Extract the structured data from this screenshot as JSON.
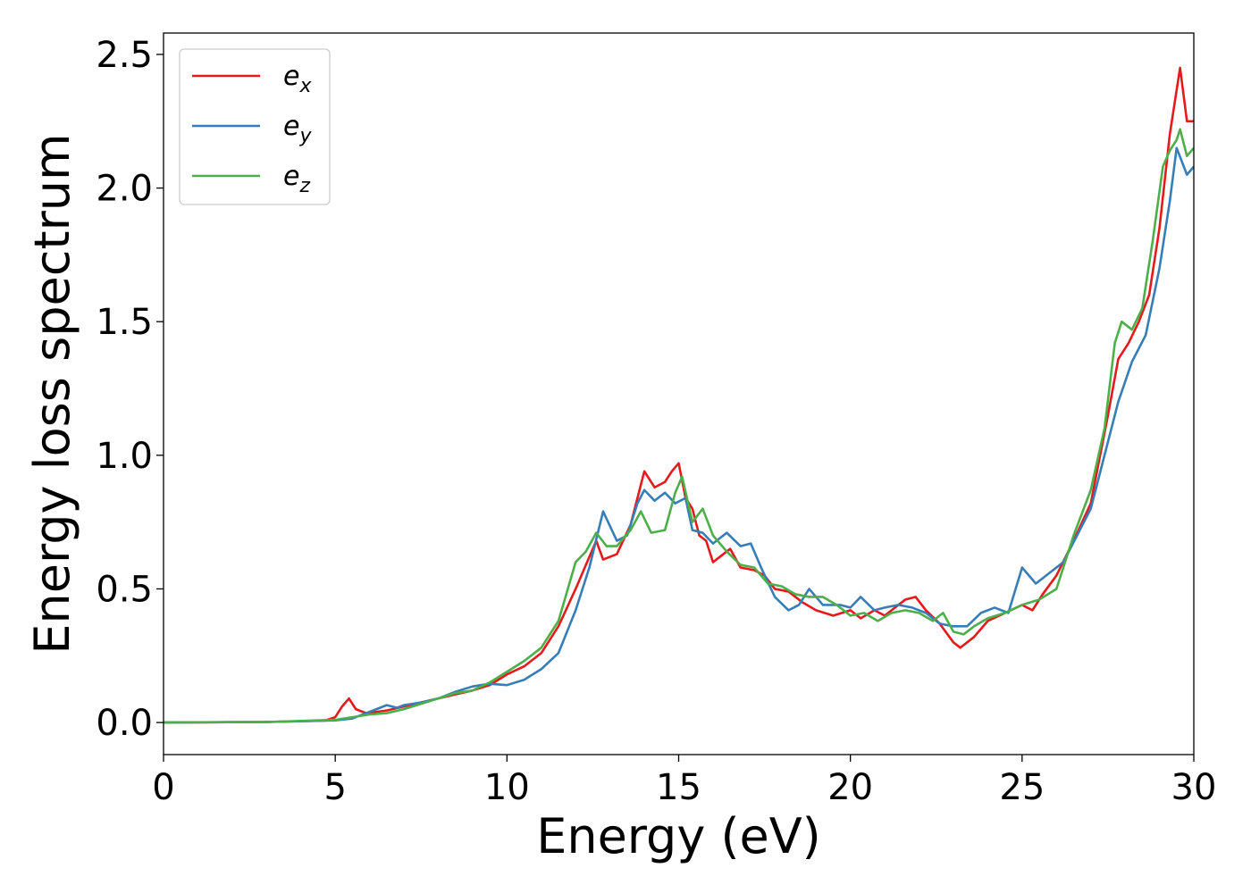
{
  "chart_data": {
    "type": "line",
    "title": "",
    "xlabel": "Energy (eV)",
    "ylabel": "Energy loss spectrum",
    "xlim": [
      0,
      30
    ],
    "ylim": [
      -0.12,
      2.58
    ],
    "xticks": [
      0,
      5,
      10,
      15,
      20,
      25,
      30
    ],
    "xtick_labels": [
      "0",
      "5",
      "10",
      "15",
      "20",
      "25",
      "30"
    ],
    "yticks": [
      0.0,
      0.5,
      1.0,
      1.5,
      2.0,
      2.5
    ],
    "ytick_labels": [
      "0.0",
      "0.5",
      "1.0",
      "1.5",
      "2.0",
      "2.5"
    ],
    "grid": false,
    "legend_position": "top-left",
    "series": [
      {
        "name": "e",
        "subscript": "x",
        "color": "#e41a1c",
        "points": [
          [
            0,
            0
          ],
          [
            3,
            0.002
          ],
          [
            4.7,
            0.007
          ],
          [
            5.0,
            0.02
          ],
          [
            5.2,
            0.06
          ],
          [
            5.4,
            0.09
          ],
          [
            5.6,
            0.05
          ],
          [
            5.9,
            0.035
          ],
          [
            6.5,
            0.045
          ],
          [
            7,
            0.06
          ],
          [
            7.5,
            0.075
          ],
          [
            8,
            0.09
          ],
          [
            8.5,
            0.105
          ],
          [
            9,
            0.12
          ],
          [
            9.5,
            0.14
          ],
          [
            10,
            0.18
          ],
          [
            10.5,
            0.21
          ],
          [
            11,
            0.26
          ],
          [
            11.5,
            0.36
          ],
          [
            12,
            0.5
          ],
          [
            12.3,
            0.59
          ],
          [
            12.6,
            0.68
          ],
          [
            12.8,
            0.61
          ],
          [
            13.2,
            0.63
          ],
          [
            13.6,
            0.74
          ],
          [
            14.0,
            0.94
          ],
          [
            14.3,
            0.88
          ],
          [
            14.6,
            0.9
          ],
          [
            14.8,
            0.94
          ],
          [
            15.0,
            0.97
          ],
          [
            15.2,
            0.84
          ],
          [
            15.4,
            0.8
          ],
          [
            15.6,
            0.7
          ],
          [
            15.8,
            0.68
          ],
          [
            16.0,
            0.6
          ],
          [
            16.2,
            0.62
          ],
          [
            16.5,
            0.65
          ],
          [
            16.8,
            0.58
          ],
          [
            17.2,
            0.57
          ],
          [
            17.5,
            0.55
          ],
          [
            17.8,
            0.5
          ],
          [
            18.2,
            0.49
          ],
          [
            18.6,
            0.45
          ],
          [
            19.0,
            0.42
          ],
          [
            19.5,
            0.4
          ],
          [
            20.0,
            0.42
          ],
          [
            20.3,
            0.39
          ],
          [
            20.7,
            0.42
          ],
          [
            21.0,
            0.4
          ],
          [
            21.3,
            0.43
          ],
          [
            21.6,
            0.46
          ],
          [
            21.9,
            0.47
          ],
          [
            22.2,
            0.42
          ],
          [
            22.6,
            0.37
          ],
          [
            23.0,
            0.3
          ],
          [
            23.2,
            0.28
          ],
          [
            23.6,
            0.32
          ],
          [
            24.0,
            0.38
          ],
          [
            24.5,
            0.41
          ],
          [
            25.0,
            0.44
          ],
          [
            25.3,
            0.42
          ],
          [
            25.6,
            0.48
          ],
          [
            26.0,
            0.55
          ],
          [
            26.5,
            0.68
          ],
          [
            27.0,
            0.82
          ],
          [
            27.5,
            1.15
          ],
          [
            27.8,
            1.36
          ],
          [
            28.1,
            1.42
          ],
          [
            28.4,
            1.5
          ],
          [
            28.7,
            1.6
          ],
          [
            29.0,
            1.85
          ],
          [
            29.3,
            2.2
          ],
          [
            29.6,
            2.45
          ],
          [
            29.8,
            2.25
          ],
          [
            30.0,
            2.25
          ]
        ]
      },
      {
        "name": "e",
        "subscript": "y",
        "color": "#377eb8",
        "points": [
          [
            0,
            0
          ],
          [
            3,
            0.002
          ],
          [
            5,
            0.008
          ],
          [
            5.5,
            0.015
          ],
          [
            6.0,
            0.04
          ],
          [
            6.5,
            0.065
          ],
          [
            6.8,
            0.055
          ],
          [
            7,
            0.065
          ],
          [
            7.5,
            0.075
          ],
          [
            8,
            0.09
          ],
          [
            8.5,
            0.115
          ],
          [
            9,
            0.135
          ],
          [
            9.5,
            0.145
          ],
          [
            10,
            0.14
          ],
          [
            10.5,
            0.16
          ],
          [
            11,
            0.2
          ],
          [
            11.5,
            0.26
          ],
          [
            12,
            0.42
          ],
          [
            12.4,
            0.58
          ],
          [
            12.8,
            0.79
          ],
          [
            13.2,
            0.68
          ],
          [
            13.5,
            0.7
          ],
          [
            13.8,
            0.82
          ],
          [
            14.0,
            0.87
          ],
          [
            14.3,
            0.83
          ],
          [
            14.6,
            0.86
          ],
          [
            14.9,
            0.82
          ],
          [
            15.2,
            0.84
          ],
          [
            15.4,
            0.72
          ],
          [
            15.7,
            0.71
          ],
          [
            16.0,
            0.67
          ],
          [
            16.4,
            0.71
          ],
          [
            16.8,
            0.66
          ],
          [
            17.1,
            0.67
          ],
          [
            17.4,
            0.58
          ],
          [
            17.8,
            0.47
          ],
          [
            18.2,
            0.42
          ],
          [
            18.5,
            0.44
          ],
          [
            18.8,
            0.5
          ],
          [
            19.2,
            0.44
          ],
          [
            19.7,
            0.44
          ],
          [
            20.0,
            0.43
          ],
          [
            20.3,
            0.47
          ],
          [
            20.7,
            0.42
          ],
          [
            21.0,
            0.43
          ],
          [
            21.4,
            0.44
          ],
          [
            21.8,
            0.43
          ],
          [
            22.2,
            0.41
          ],
          [
            22.6,
            0.37
          ],
          [
            23.0,
            0.36
          ],
          [
            23.4,
            0.36
          ],
          [
            23.8,
            0.41
          ],
          [
            24.2,
            0.43
          ],
          [
            24.6,
            0.41
          ],
          [
            25.0,
            0.58
          ],
          [
            25.4,
            0.52
          ],
          [
            25.8,
            0.56
          ],
          [
            26.2,
            0.6
          ],
          [
            26.6,
            0.7
          ],
          [
            27.0,
            0.8
          ],
          [
            27.4,
            1.0
          ],
          [
            27.8,
            1.2
          ],
          [
            28.2,
            1.35
          ],
          [
            28.6,
            1.45
          ],
          [
            29.0,
            1.7
          ],
          [
            29.3,
            1.95
          ],
          [
            29.5,
            2.15
          ],
          [
            29.8,
            2.05
          ],
          [
            30.0,
            2.08
          ]
        ]
      },
      {
        "name": "e",
        "subscript": "z",
        "color": "#4daf4a",
        "points": [
          [
            0,
            0
          ],
          [
            3,
            0.002
          ],
          [
            5,
            0.01
          ],
          [
            5.5,
            0.02
          ],
          [
            6.0,
            0.03
          ],
          [
            6.5,
            0.035
          ],
          [
            7,
            0.05
          ],
          [
            7.5,
            0.07
          ],
          [
            8,
            0.09
          ],
          [
            8.5,
            0.11
          ],
          [
            9,
            0.12
          ],
          [
            9.5,
            0.15
          ],
          [
            10,
            0.19
          ],
          [
            10.5,
            0.23
          ],
          [
            11,
            0.28
          ],
          [
            11.5,
            0.38
          ],
          [
            12,
            0.6
          ],
          [
            12.3,
            0.64
          ],
          [
            12.6,
            0.71
          ],
          [
            12.9,
            0.66
          ],
          [
            13.2,
            0.66
          ],
          [
            13.6,
            0.72
          ],
          [
            13.9,
            0.79
          ],
          [
            14.2,
            0.71
          ],
          [
            14.6,
            0.72
          ],
          [
            14.9,
            0.86
          ],
          [
            15.1,
            0.92
          ],
          [
            15.4,
            0.75
          ],
          [
            15.7,
            0.8
          ],
          [
            16.0,
            0.7
          ],
          [
            16.4,
            0.64
          ],
          [
            16.8,
            0.59
          ],
          [
            17.2,
            0.58
          ],
          [
            17.6,
            0.52
          ],
          [
            18.0,
            0.51
          ],
          [
            18.4,
            0.48
          ],
          [
            18.8,
            0.47
          ],
          [
            19.2,
            0.47
          ],
          [
            19.6,
            0.44
          ],
          [
            20.0,
            0.4
          ],
          [
            20.4,
            0.41
          ],
          [
            20.8,
            0.38
          ],
          [
            21.2,
            0.41
          ],
          [
            21.6,
            0.42
          ],
          [
            22.0,
            0.41
          ],
          [
            22.4,
            0.38
          ],
          [
            22.7,
            0.41
          ],
          [
            23.0,
            0.34
          ],
          [
            23.3,
            0.33
          ],
          [
            23.6,
            0.36
          ],
          [
            24.0,
            0.39
          ],
          [
            24.5,
            0.41
          ],
          [
            25.0,
            0.44
          ],
          [
            25.5,
            0.46
          ],
          [
            26.0,
            0.5
          ],
          [
            26.5,
            0.7
          ],
          [
            27.0,
            0.87
          ],
          [
            27.4,
            1.1
          ],
          [
            27.7,
            1.42
          ],
          [
            27.9,
            1.5
          ],
          [
            28.2,
            1.47
          ],
          [
            28.5,
            1.55
          ],
          [
            28.8,
            1.8
          ],
          [
            29.1,
            2.08
          ],
          [
            29.3,
            2.14
          ],
          [
            29.5,
            2.18
          ],
          [
            29.6,
            2.22
          ],
          [
            29.8,
            2.12
          ],
          [
            30.0,
            2.15
          ]
        ]
      }
    ]
  }
}
